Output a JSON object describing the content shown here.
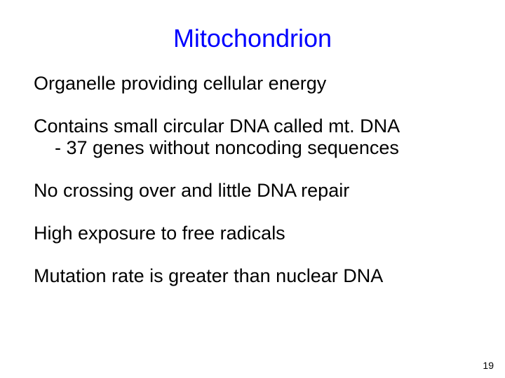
{
  "title": {
    "text": "Mitochondrion",
    "color": "#0000ff",
    "fontsize": 36,
    "weight": "normal"
  },
  "body": {
    "color": "#000000",
    "fontsize": 27,
    "weight": "normal",
    "paragraphs": [
      {
        "lines": [
          "Organelle providing cellular energy"
        ]
      },
      {
        "lines": [
          "Contains small circular DNA called mt. DNA",
          " - 37 genes without noncoding sequences"
        ],
        "indentAfterFirst": true
      },
      {
        "lines": [
          "No crossing over and little DNA repair"
        ]
      },
      {
        "lines": [
          "High exposure to free radicals"
        ]
      },
      {
        "lines": [
          "Mutation rate is greater than nuclear DNA"
        ]
      }
    ]
  },
  "pageNumber": {
    "text": "19",
    "color": "#000000",
    "fontsize": 14
  },
  "background_color": "#ffffff"
}
